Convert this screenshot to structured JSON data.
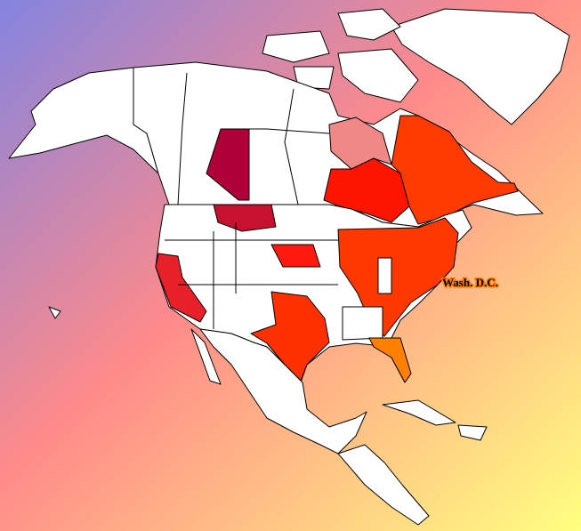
{
  "map": {
    "capital_label": "Wash. D.C."
  }
}
